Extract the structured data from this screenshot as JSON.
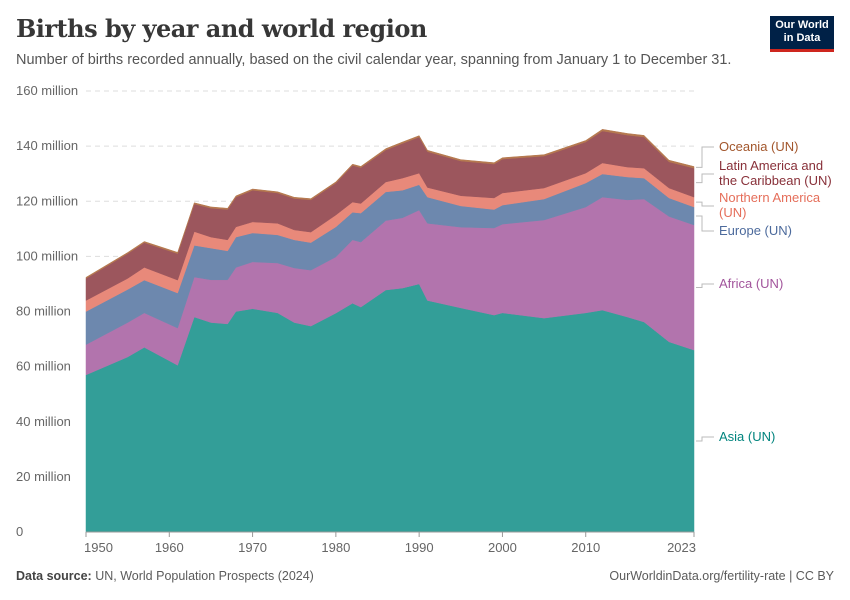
{
  "header": {
    "title": "Births by year and world region",
    "subtitle": "Number of births recorded annually, based on the civil calendar year, spanning from January 1 to December 31.",
    "logo": "Our World in Data"
  },
  "footer": {
    "source_label": "Data source:",
    "source": "UN, World Population Prospects (2024)",
    "link": "OurWorldinData.org/fertility-rate | CC BY"
  },
  "chart_data": {
    "type": "area",
    "stacked": true,
    "title": "Births by year and world region",
    "xlim": [
      1950,
      2023
    ],
    "ylim": [
      0,
      160000000
    ],
    "grid": true,
    "legend": "right (inline labels)",
    "x_ticks": [
      "1950",
      "1960",
      "1970",
      "1980",
      "1990",
      "2000",
      "2010",
      "2023"
    ],
    "x_tick_values": [
      1950,
      1960,
      1970,
      1980,
      1990,
      2000,
      2010,
      2023
    ],
    "y_ticks": [
      "0",
      "20 million",
      "40 million",
      "60 million",
      "80 million",
      "100 million",
      "120 million",
      "140 million",
      "160 million"
    ],
    "y_tick_values": [
      0,
      20,
      40,
      60,
      80,
      100,
      120,
      140,
      160
    ],
    "units": "million",
    "x": [
      1950,
      1955,
      1957,
      1961,
      1963,
      1965,
      1967,
      1968,
      1970,
      1973,
      1975,
      1977,
      1980,
      1982,
      1983,
      1986,
      1988,
      1990,
      1991,
      1995,
      1999,
      2000,
      2005,
      2010,
      2012,
      2015,
      2017,
      2020,
      2023
    ],
    "series": [
      {
        "name": "Asia (UN)",
        "color": "#00847e",
        "fill": "#339e98",
        "values": [
          57,
          63.5,
          67,
          60.5,
          78,
          76,
          75.5,
          80,
          81,
          79.5,
          76,
          74.7,
          79.4,
          83,
          81.6,
          87.8,
          88.5,
          90,
          84,
          81.3,
          78.7,
          79.5,
          77.6,
          79.5,
          80.5,
          78,
          76.2,
          69,
          66
        ]
      },
      {
        "name": "Africa (UN)",
        "color": "#a2559c",
        "fill": "#b274ad",
        "values": [
          11,
          12.5,
          12.5,
          13.5,
          14.5,
          15.5,
          16,
          16,
          17,
          18.1,
          19.8,
          20.3,
          20.4,
          23,
          23.6,
          25.2,
          25.5,
          26.8,
          28,
          29.3,
          31.6,
          32.2,
          35.6,
          38.4,
          41,
          42.5,
          44.6,
          45.5,
          45.4
        ]
      },
      {
        "name": "Europe (UN)",
        "color": "#4c6a9c",
        "fill": "#6d88ae",
        "values": [
          12,
          12,
          11.9,
          12.7,
          11.5,
          11.5,
          10.5,
          11,
          10.5,
          10.2,
          10.2,
          10,
          10.9,
          10,
          10.5,
          10.4,
          10,
          9.2,
          9.5,
          7.7,
          6.7,
          6.9,
          7.6,
          8.7,
          8.4,
          8.3,
          7.6,
          6.7,
          6.5
        ]
      },
      {
        "name": "Northern America (UN)",
        "color": "#e56e5a",
        "fill": "#e8897a",
        "values": [
          4,
          4,
          4.6,
          4.7,
          5,
          4,
          4,
          3.7,
          4,
          4.2,
          3.6,
          3.8,
          4.3,
          3.7,
          3.5,
          3.6,
          4.4,
          4.2,
          3.5,
          3.7,
          4.2,
          4.4,
          4,
          3.6,
          4,
          3.6,
          3.6,
          3.6,
          3.6
        ]
      },
      {
        "name": "Latin America and the Caribbean (UN)",
        "color": "#883039",
        "fill": "#9c565d",
        "values": [
          8,
          9,
          9,
          9.6,
          10,
          10.5,
          11,
          10.8,
          11.5,
          11,
          11.4,
          11.7,
          11.6,
          13.3,
          13,
          11.6,
          12.6,
          13.1,
          13,
          12.6,
          12.3,
          12.3,
          11.6,
          11.3,
          11.6,
          11.6,
          11.3,
          9.5,
          10.5
        ]
      },
      {
        "name": "Oceania (UN)",
        "color": "#a2562c",
        "fill": "#b5784f",
        "values": [
          0.4,
          0.4,
          0.4,
          0.45,
          0.45,
          0.45,
          0.45,
          0.45,
          0.45,
          0.45,
          0.45,
          0.45,
          0.45,
          0.45,
          0.45,
          0.5,
          0.5,
          0.5,
          0.5,
          0.5,
          0.5,
          0.5,
          0.5,
          0.55,
          0.6,
          0.6,
          0.6,
          0.6,
          0.6
        ]
      }
    ],
    "labels": [
      {
        "lines": [
          "Oceania (UN)"
        ]
      },
      {
        "lines": [
          "Latin America and",
          "the Caribbean (UN)"
        ]
      },
      {
        "lines": [
          "Northern America",
          "(UN)"
        ]
      },
      {
        "lines": [
          "Europe (UN)"
        ]
      },
      {
        "lines": [
          "Africa (UN)"
        ]
      },
      {
        "lines": [
          "Asia (UN)"
        ]
      }
    ]
  }
}
